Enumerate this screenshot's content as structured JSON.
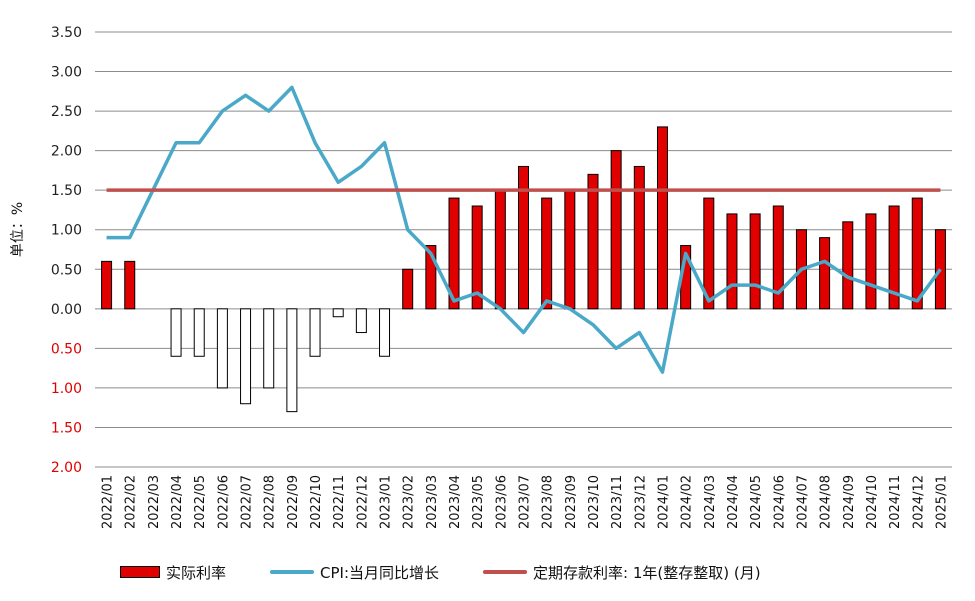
{
  "chart_data": {
    "type": "bar",
    "ylabel": "单位：%",
    "ylim": [
      -2.0,
      3.5
    ],
    "y_ticks": [
      {
        "value": 3.5,
        "label": "3.50",
        "color": "#222222"
      },
      {
        "value": 3.0,
        "label": "3.00",
        "color": "#222222"
      },
      {
        "value": 2.5,
        "label": "2.50",
        "color": "#222222"
      },
      {
        "value": 2.0,
        "label": "2.00",
        "color": "#222222"
      },
      {
        "value": 1.5,
        "label": "1.50",
        "color": "#222222"
      },
      {
        "value": 1.0,
        "label": "1.00",
        "color": "#222222"
      },
      {
        "value": 0.5,
        "label": "0.50",
        "color": "#222222"
      },
      {
        "value": 0.0,
        "label": "0.00",
        "color": "#222222"
      },
      {
        "value": -0.5,
        "label": "0.50",
        "color": "#e00000"
      },
      {
        "value": -1.0,
        "label": "1.00",
        "color": "#e00000"
      },
      {
        "value": -1.5,
        "label": "1.50",
        "color": "#e00000"
      },
      {
        "value": -2.0,
        "label": "2.00",
        "color": "#e00000"
      }
    ],
    "categories": [
      "2022/01",
      "2022/02",
      "2022/03",
      "2022/04",
      "2022/05",
      "2022/06",
      "2022/07",
      "2022/08",
      "2022/09",
      "2022/10",
      "2022/11",
      "2022/12",
      "2023/01",
      "2023/02",
      "2023/03",
      "2023/04",
      "2023/05",
      "2023/06",
      "2023/07",
      "2023/08",
      "2023/09",
      "2023/10",
      "2023/11",
      "2023/12",
      "2024/01",
      "2024/02",
      "2024/03",
      "2024/04",
      "2024/05",
      "2024/06",
      "2024/07",
      "2024/08",
      "2024/09",
      "2024/10",
      "2024/11",
      "2024/12",
      "2025/01"
    ],
    "series": [
      {
        "name": "实际利率",
        "kind": "bar",
        "color": "#e00000",
        "values": [
          0.6,
          0.6,
          0.0,
          -0.6,
          -0.6,
          -1.0,
          -1.2,
          -1.0,
          -1.3,
          -0.6,
          -0.1,
          -0.3,
          -0.6,
          0.5,
          0.8,
          1.4,
          1.3,
          1.5,
          1.8,
          1.4,
          1.5,
          1.7,
          2.0,
          1.8,
          2.3,
          0.8,
          1.4,
          1.2,
          1.2,
          1.3,
          1.0,
          0.9,
          1.1,
          1.2,
          1.3,
          1.4,
          1.0
        ]
      },
      {
        "name": "CPI:当月同比增长",
        "kind": "line",
        "color": "#4aa8c8",
        "values": [
          0.9,
          0.9,
          1.5,
          2.1,
          2.1,
          2.5,
          2.7,
          2.5,
          2.8,
          2.1,
          1.6,
          1.8,
          2.1,
          1.0,
          0.7,
          0.1,
          0.2,
          0.0,
          -0.3,
          0.1,
          0.0,
          -0.2,
          -0.5,
          -0.3,
          -0.8,
          0.7,
          0.1,
          0.3,
          0.3,
          0.2,
          0.5,
          0.6,
          0.4,
          0.3,
          0.2,
          0.1,
          0.5
        ]
      },
      {
        "name": "定期存款利率：1年（整存整取）（月）",
        "kind": "line",
        "color": "#c0504d",
        "values": [
          1.5,
          1.5,
          1.5,
          1.5,
          1.5,
          1.5,
          1.5,
          1.5,
          1.5,
          1.5,
          1.5,
          1.5,
          1.5,
          1.5,
          1.5,
          1.5,
          1.5,
          1.5,
          1.5,
          1.5,
          1.5,
          1.5,
          1.5,
          1.5,
          1.5,
          1.5,
          1.5,
          1.5,
          1.5,
          1.5,
          1.5,
          1.5,
          1.5,
          1.5,
          1.5,
          1.5,
          1.5
        ]
      }
    ],
    "grid": true,
    "legend_position": "bottom"
  },
  "legend": {
    "bar_label": "实际利率",
    "cpi_label": "CPI:当月同比增长",
    "deposit_label": "定期存款利率: 1年(整存整取) (月)"
  }
}
